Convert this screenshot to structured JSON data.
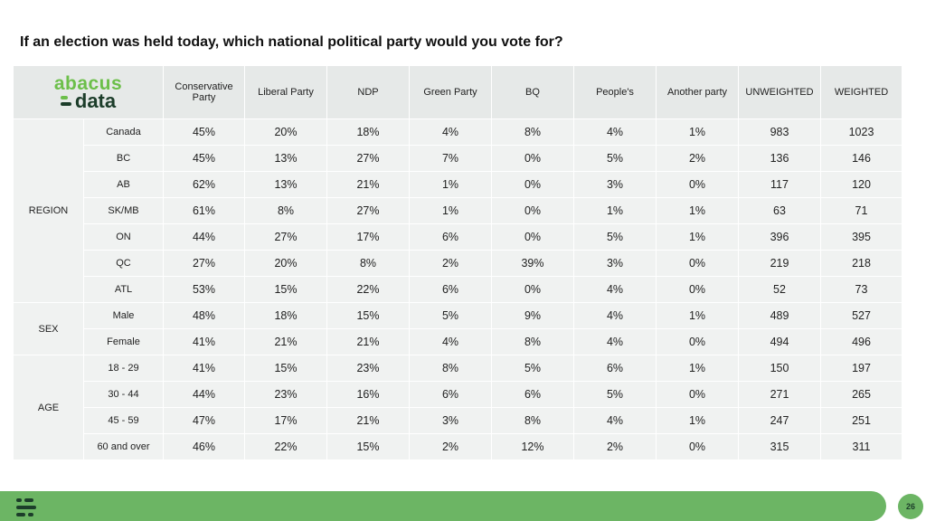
{
  "title": "If an election was held today, which national political party would you vote for?",
  "logo": {
    "top": "abacus",
    "bottom": "data"
  },
  "columns": [
    "Conservative Party",
    "Liberal Party",
    "NDP",
    "Green Party",
    "BQ",
    "People's",
    "Another party",
    "UNWEIGHTED",
    "WEIGHTED"
  ],
  "groups": [
    {
      "label": "REGION",
      "rows": [
        {
          "label": "Canada",
          "values": [
            "45%",
            "20%",
            "18%",
            "4%",
            "8%",
            "4%",
            "1%",
            "983",
            "1023"
          ]
        },
        {
          "label": "BC",
          "values": [
            "45%",
            "13%",
            "27%",
            "7%",
            "0%",
            "5%",
            "2%",
            "136",
            "146"
          ]
        },
        {
          "label": "AB",
          "values": [
            "62%",
            "13%",
            "21%",
            "1%",
            "0%",
            "3%",
            "0%",
            "117",
            "120"
          ]
        },
        {
          "label": "SK/MB",
          "values": [
            "61%",
            "8%",
            "27%",
            "1%",
            "0%",
            "1%",
            "1%",
            "63",
            "71"
          ]
        },
        {
          "label": "ON",
          "values": [
            "44%",
            "27%",
            "17%",
            "6%",
            "0%",
            "5%",
            "1%",
            "396",
            "395"
          ]
        },
        {
          "label": "QC",
          "values": [
            "27%",
            "20%",
            "8%",
            "2%",
            "39%",
            "3%",
            "0%",
            "219",
            "218"
          ]
        },
        {
          "label": "ATL",
          "values": [
            "53%",
            "15%",
            "22%",
            "6%",
            "0%",
            "4%",
            "0%",
            "52",
            "73"
          ]
        }
      ]
    },
    {
      "label": "SEX",
      "rows": [
        {
          "label": "Male",
          "values": [
            "48%",
            "18%",
            "15%",
            "5%",
            "9%",
            "4%",
            "1%",
            "489",
            "527"
          ]
        },
        {
          "label": "Female",
          "values": [
            "41%",
            "21%",
            "21%",
            "4%",
            "8%",
            "4%",
            "0%",
            "494",
            "496"
          ]
        }
      ]
    },
    {
      "label": "AGE",
      "rows": [
        {
          "label": "18 - 29",
          "values": [
            "41%",
            "15%",
            "23%",
            "8%",
            "5%",
            "6%",
            "1%",
            "150",
            "197"
          ]
        },
        {
          "label": "30 - 44",
          "values": [
            "44%",
            "23%",
            "16%",
            "6%",
            "6%",
            "5%",
            "0%",
            "271",
            "265"
          ]
        },
        {
          "label": "45 - 59",
          "values": [
            "47%",
            "17%",
            "21%",
            "3%",
            "8%",
            "4%",
            "1%",
            "247",
            "251"
          ]
        },
        {
          "label": "60 and over",
          "values": [
            "46%",
            "22%",
            "15%",
            "2%",
            "12%",
            "2%",
            "0%",
            "315",
            "311"
          ]
        }
      ]
    }
  ],
  "page_number": "26",
  "colors": {
    "brand_green": "#6cb564",
    "brand_dark": "#1c3d2a",
    "cell_bg": "#f0f2f1",
    "header_bg": "#e6e9e8"
  }
}
